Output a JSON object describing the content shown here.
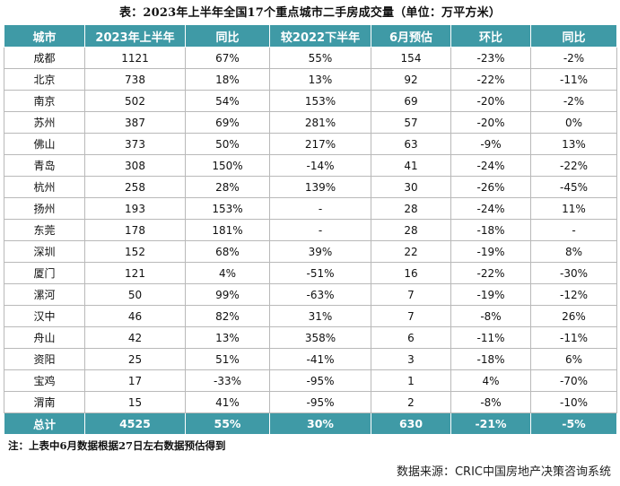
{
  "title": "表：2023年上半年全国17个重点城市二手房成交量（单位：万平方米）",
  "table": {
    "headers": [
      "城市",
      "2023年上半年",
      "同比",
      "较2022下半年",
      "6月预估",
      "环比",
      "同比"
    ],
    "rows": [
      [
        "成都",
        "1121",
        "67%",
        "55%",
        "154",
        "-23%",
        "-2%"
      ],
      [
        "北京",
        "738",
        "18%",
        "13%",
        "92",
        "-22%",
        "-11%"
      ],
      [
        "南京",
        "502",
        "54%",
        "153%",
        "69",
        "-20%",
        "-2%"
      ],
      [
        "苏州",
        "387",
        "69%",
        "281%",
        "57",
        "-20%",
        "0%"
      ],
      [
        "佛山",
        "373",
        "50%",
        "217%",
        "63",
        "-9%",
        "13%"
      ],
      [
        "青岛",
        "308",
        "150%",
        "-14%",
        "41",
        "-24%",
        "-22%"
      ],
      [
        "杭州",
        "258",
        "28%",
        "139%",
        "30",
        "-26%",
        "-45%"
      ],
      [
        "扬州",
        "193",
        "153%",
        "-",
        "28",
        "-24%",
        "11%"
      ],
      [
        "东莞",
        "178",
        "181%",
        "-",
        "28",
        "-18%",
        "-"
      ],
      [
        "深圳",
        "152",
        "68%",
        "39%",
        "22",
        "-19%",
        "8%"
      ],
      [
        "厦门",
        "121",
        "4%",
        "-51%",
        "16",
        "-22%",
        "-30%"
      ],
      [
        "漯河",
        "50",
        "99%",
        "-63%",
        "7",
        "-19%",
        "-12%"
      ],
      [
        "汉中",
        "46",
        "82%",
        "31%",
        "7",
        "-8%",
        "26%"
      ],
      [
        "舟山",
        "42",
        "13%",
        "358%",
        "6",
        "-11%",
        "-11%"
      ],
      [
        "资阳",
        "25",
        "51%",
        "-41%",
        "3",
        "-18%",
        "6%"
      ],
      [
        "宝鸡",
        "17",
        "-33%",
        "-95%",
        "1",
        "4%",
        "-70%"
      ],
      [
        "渭南",
        "15",
        "41%",
        "-95%",
        "2",
        "-8%",
        "-10%"
      ]
    ],
    "total": [
      "总计",
      "4525",
      "55%",
      "30%",
      "630",
      "-21%",
      "-5%"
    ]
  },
  "note": "注：上表中6月数据根据27日左右数据预估得到",
  "source": "数据来源：CRIC中国房地产决策咨询系统",
  "colors": {
    "header_bg": "#3f9aa6",
    "header_text": "#ffffff",
    "grid": "#b9b9b9"
  }
}
